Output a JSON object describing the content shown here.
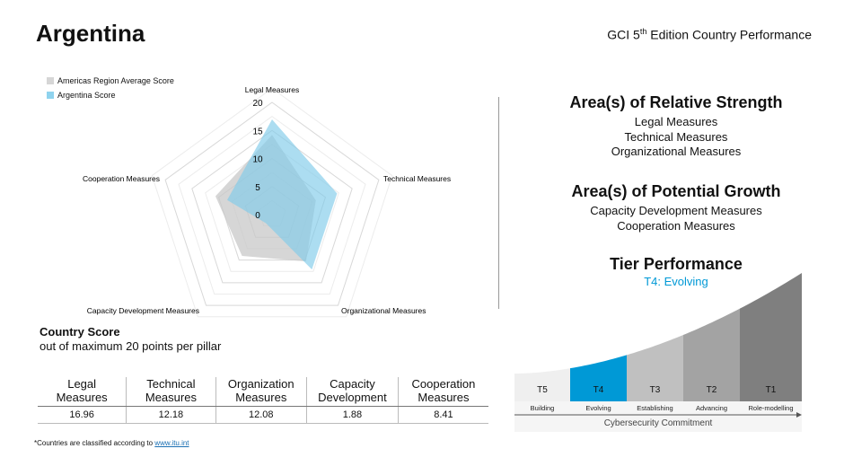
{
  "header": {
    "title": "Argentina",
    "subtitle_pre": "GCI 5",
    "subtitle_sup": "th",
    "subtitle_post": " Edition Country Performance"
  },
  "chart_data": {
    "type": "radar",
    "categories": [
      "Legal Measures",
      "Technical Measures",
      "Organizational Measures",
      "Capacity Development Measures",
      "Cooperation Measures"
    ],
    "rlim": [
      0,
      20
    ],
    "ticks": [
      "0",
      "5",
      "10",
      "15",
      "20"
    ],
    "series": [
      {
        "name": "Americas Region Average Score",
        "values": [
          14.2,
          8.2,
          10.3,
          9.1,
          10.6
        ],
        "color": "#c8c8c8"
      },
      {
        "name": "Argentina Score",
        "values": [
          16.96,
          12.18,
          12.08,
          1.88,
          8.41
        ],
        "color": "#7fcbea"
      }
    ],
    "legend": "top-left"
  },
  "strength": {
    "title": "Area(s) of Relative Strength",
    "items": [
      "Legal Measures",
      "Technical Measures",
      "Organizational Measures"
    ]
  },
  "growth": {
    "title": "Area(s) of Potential Growth",
    "items": [
      "Capacity Development Measures",
      "Cooperation Measures"
    ]
  },
  "tier": {
    "title": "Tier Performance",
    "current": "T4: Evolving",
    "accent": "#0099d6",
    "tiers": [
      {
        "code": "T5",
        "label": "Building",
        "color": "#efefef"
      },
      {
        "code": "T4",
        "label": "Evolving",
        "color": "#0099d6"
      },
      {
        "code": "T3",
        "label": "Establishing",
        "color": "#c0c0c0"
      },
      {
        "code": "T2",
        "label": "Advancing",
        "color": "#a3a3a3"
      },
      {
        "code": "T1",
        "label": "Role-modelling",
        "color": "#7f7f7f"
      }
    ],
    "axis_label": "Cybersecurity Commitment"
  },
  "score": {
    "title": "Country Score",
    "subtitle": "out of maximum 20 points per pillar",
    "headers": [
      [
        "Legal",
        "Measures"
      ],
      [
        "Technical",
        "Measures"
      ],
      [
        "Organization",
        "Measures"
      ],
      [
        "Capacity",
        "Development"
      ],
      [
        "Cooperation",
        "Measures"
      ]
    ],
    "values": [
      "16.96",
      "12.18",
      "12.08",
      "1.88",
      "8.41"
    ]
  },
  "footer": {
    "text": "*Countries are classified according to ",
    "link": "www.itu.int"
  }
}
